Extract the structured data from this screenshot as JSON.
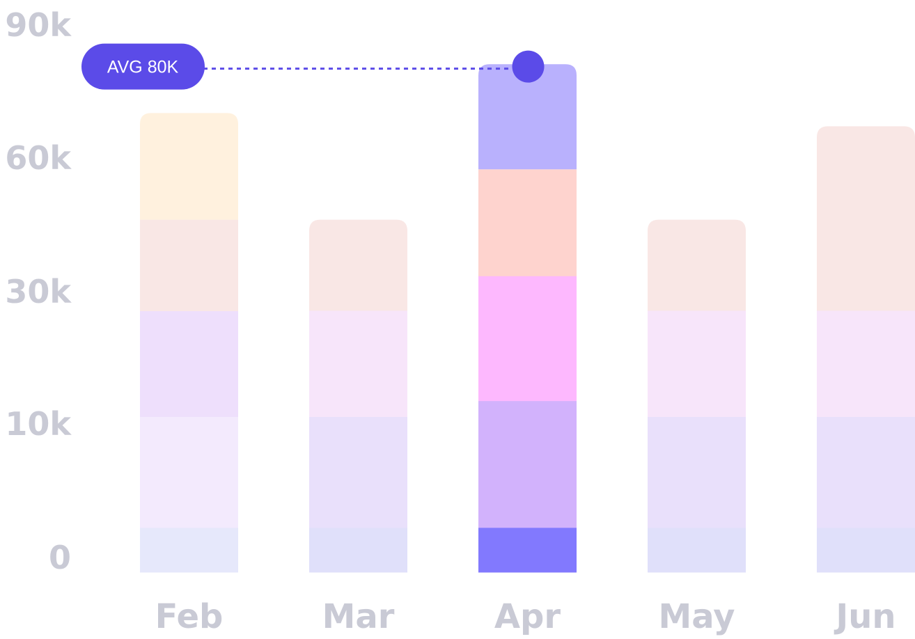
{
  "chart_data": {
    "type": "bar",
    "stacked": true,
    "title": "",
    "xlabel": "",
    "ylabel": "",
    "categories": [
      "Feb",
      "Mar",
      "Apr",
      "May",
      "Jun"
    ],
    "y_ticks": [
      "0",
      "10k",
      "30k",
      "60k",
      "90k"
    ],
    "y_tick_values": [
      0,
      10000,
      30000,
      60000,
      90000
    ],
    "y_scale": "non-uniform (ticks evenly spaced)",
    "ylim": [
      0,
      90000
    ],
    "grid": false,
    "highlighted_category": "Apr",
    "stacks": [
      {
        "category": "Feb",
        "segments": [
          3000,
          8000,
          16000,
          19000,
          24000
        ],
        "colors": [
          "#E6E8FB",
          "#F3EAFD",
          "#EEDFFC",
          "#F9E7E5",
          "#FFF1DE"
        ]
      },
      {
        "category": "Mar",
        "segments": [
          3000,
          8000,
          16000,
          19000
        ],
        "colors": [
          "#E0E0FA",
          "#E9E0FB",
          "#F7E5FA",
          "#F9E7E5"
        ]
      },
      {
        "category": "Apr",
        "segments": [
          3000,
          10400,
          20000,
          23900,
          23700
        ],
        "colors": [
          "#8279FE",
          "#D2B2FC",
          "#FDB8FE",
          "#FED3CE",
          "#B9B1FD"
        ]
      },
      {
        "category": "May",
        "segments": [
          3000,
          8000,
          16000,
          19000
        ],
        "colors": [
          "#E0E0FA",
          "#E9E0FB",
          "#F7E5FA",
          "#F9E7E5"
        ]
      },
      {
        "category": "Jun",
        "segments": [
          3000,
          8000,
          16000,
          40000
        ],
        "colors": [
          "#E0E0FA",
          "#E9E0FB",
          "#F7E5FA",
          "#F9E7E5"
        ]
      }
    ],
    "annotation": {
      "label": "AVG 80K",
      "value": 80000,
      "style": "dotted line to marker"
    }
  },
  "colors": {
    "accent": "#5B4BE8",
    "axis_text": "#C9CAD5"
  }
}
